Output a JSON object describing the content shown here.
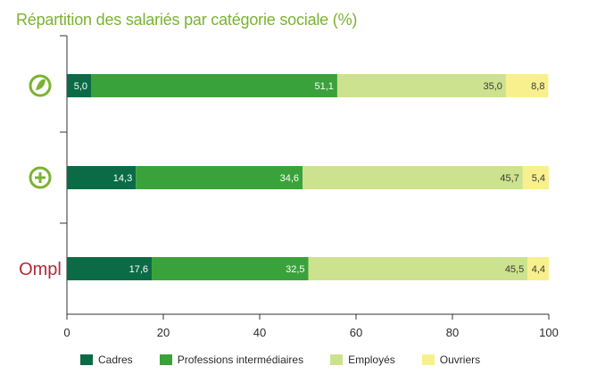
{
  "chart_data": {
    "type": "bar",
    "orientation": "horizontal",
    "stacked": true,
    "title": "Répartition des salariés par catégorie sociale (%)",
    "categories": [
      "leaf-logo",
      "plus-logo",
      "Ompl"
    ],
    "xlim": [
      0,
      100
    ],
    "xticks": [
      "0",
      "20",
      "40",
      "60",
      "80",
      "100"
    ],
    "grid": false,
    "legend_position": "bottom",
    "series": [
      {
        "name": "Cadres",
        "color": "#0b6b46",
        "values": [
          5.0,
          14.3,
          17.6
        ],
        "labels": [
          "5,0",
          "14,3",
          "17,6"
        ]
      },
      {
        "name": "Professions intermédiaires",
        "color": "#3aa23a",
        "values": [
          51.1,
          34.6,
          32.5
        ],
        "labels": [
          "51,1",
          "34,6",
          "32,5"
        ]
      },
      {
        "name": "Employés",
        "color": "#cde28e",
        "values": [
          35.0,
          45.7,
          45.5
        ],
        "labels": [
          "35,0",
          "45,7",
          "45,5"
        ]
      },
      {
        "name": "Ouvriers",
        "color": "#f8f08c",
        "values": [
          8.8,
          5.4,
          4.4
        ],
        "labels": [
          "8,8",
          "5,4",
          "4,4"
        ]
      }
    ]
  },
  "row_logos": {
    "row3_text": "Ompl",
    "row3_color": "#b02a3a",
    "icon_color": "#7ab332"
  }
}
